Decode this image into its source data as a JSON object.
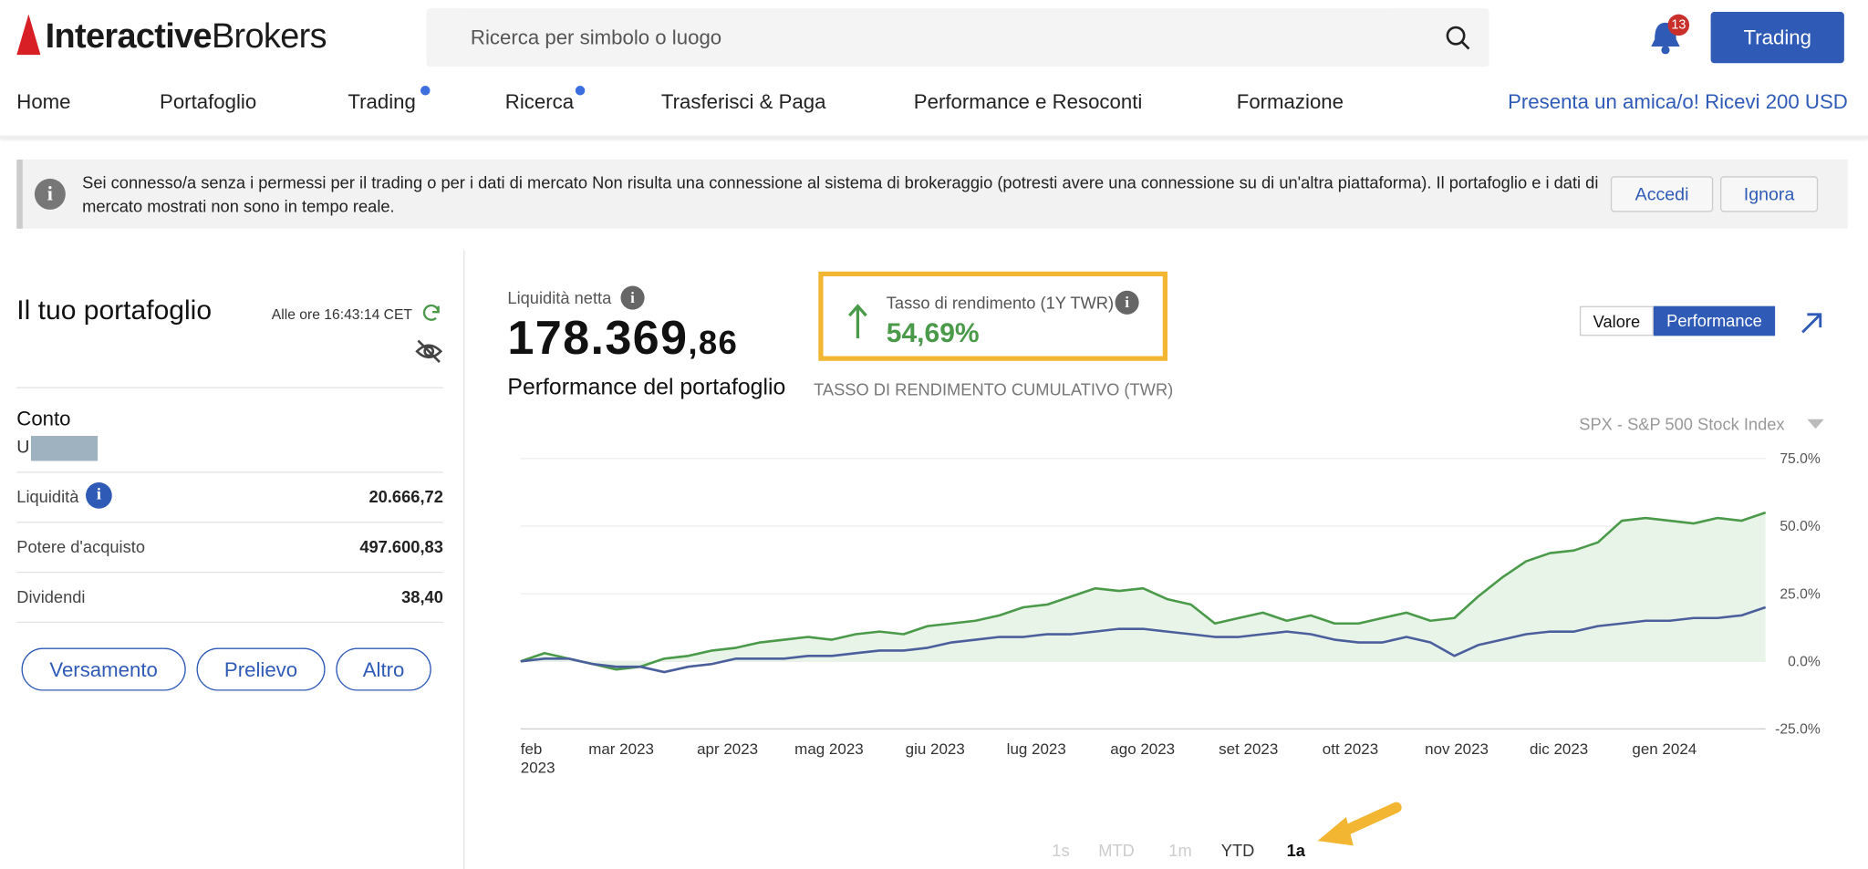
{
  "header": {
    "logo_bold": "Interactive",
    "logo_light": "Brokers",
    "search_placeholder": "Ricerca per simbolo o luogo",
    "notification_count": 13,
    "trading_button": "Trading"
  },
  "nav": {
    "items": [
      "Home",
      "Portafoglio",
      "Trading",
      "Ricerca",
      "Trasferisci & Paga",
      "Performance e Resoconti",
      "Formazione"
    ],
    "referral": "Presenta un amica/o! Ricevi 200 USD"
  },
  "banner": {
    "text": "Sei connesso/a senza i permessi per il trading o per i dati di mercato Non risulta una connessione al sistema di brokeraggio (potresti avere una connessione su di un'altra piattaforma). Il portafoglio e i dati di mercato mostrati non sono in tempo reale.",
    "buttons": [
      "Accedi",
      "Ignora"
    ]
  },
  "portfolio": {
    "title": "Il tuo portafoglio",
    "timestamp": "Alle ore 16:43:14 CET",
    "account_label": "Conto",
    "account_id": "U",
    "rows": [
      {
        "label": "Liquidità",
        "value": "20.666,72"
      },
      {
        "label": "Potere d'acquisto",
        "value": "497.600,83"
      },
      {
        "label": "Dividendi",
        "value": "38,40"
      }
    ],
    "buttons": [
      "Versamento",
      "Prelievo",
      "Altro"
    ]
  },
  "summary": {
    "net_liq_label": "Liquidità netta",
    "net_liq_int": "178.369",
    "net_liq_dec": ",86",
    "twr_label": "Tasso di rendimento (1Y TWR)",
    "twr_value": "54,69%",
    "toggle": [
      "Valore",
      "Performance"
    ]
  },
  "chart_data": {
    "type": "line",
    "title": "Performance del portafoglio",
    "subtitle": "TASSO DI RENDIMENTO CUMULATIVO (TWR)",
    "benchmark": "SPX - S&P 500 Stock Index",
    "xtick_labels": [
      "feb 2023",
      "mar 2023",
      "apr 2023",
      "mag 2023",
      "giu 2023",
      "lug 2023",
      "ago 2023",
      "set 2023",
      "ott 2023",
      "nov 2023",
      "dic 2023",
      "gen 2024"
    ],
    "ylim": [
      -25,
      75
    ],
    "yticks": [
      {
        "value": 75,
        "label": "75.0%"
      },
      {
        "value": 50,
        "label": "50.0%"
      },
      {
        "value": 25,
        "label": "25.0%"
      },
      {
        "value": 0,
        "label": "0.0%"
      },
      {
        "value": -25,
        "label": "-25.0%"
      }
    ],
    "grid": true,
    "series": [
      {
        "color": "#4a9a4a",
        "fill": "#e9f4e9",
        "values": [
          0,
          3,
          1,
          -1,
          -3,
          -2,
          1,
          2,
          4,
          5,
          7,
          8,
          9,
          8,
          10,
          11,
          10,
          13,
          14,
          15,
          17,
          20,
          21,
          24,
          27,
          26,
          27,
          23,
          21,
          14,
          16,
          18,
          15,
          17,
          14,
          14,
          16,
          18,
          15,
          16,
          24,
          31,
          37,
          40,
          41,
          44,
          52,
          53,
          52,
          51,
          53,
          52,
          55
        ]
      },
      {
        "color": "#4a5f9c",
        "values": [
          0,
          1,
          1,
          -1,
          -2,
          -2,
          -4,
          -2,
          -1,
          1,
          1,
          1,
          2,
          2,
          3,
          4,
          4,
          5,
          7,
          8,
          9,
          9,
          10,
          10,
          11,
          12,
          12,
          11,
          10,
          9,
          9,
          10,
          11,
          10,
          8,
          7,
          7,
          9,
          7,
          2,
          6,
          8,
          10,
          11,
          11,
          13,
          14,
          15,
          15,
          16,
          16,
          17,
          20
        ]
      }
    ],
    "range_buttons": [
      "1s",
      "MTD",
      "1m",
      "YTD",
      "1a"
    ]
  }
}
